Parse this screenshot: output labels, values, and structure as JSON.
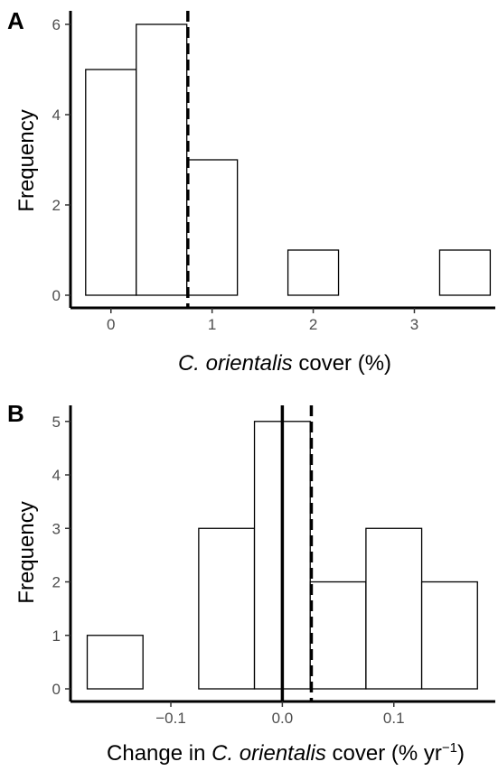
{
  "chart_data": [
    {
      "type": "bar",
      "panel": "A",
      "xlabel_italic": "C. orientalis",
      "xlabel_rest": " cover (%)",
      "ylabel": "Frequency",
      "bin_width": 0.5,
      "bins": [
        {
          "x": 0.0,
          "count": 5
        },
        {
          "x": 0.5,
          "count": 6
        },
        {
          "x": 1.0,
          "count": 3
        },
        {
          "x": 1.5,
          "count": 0
        },
        {
          "x": 2.0,
          "count": 1
        },
        {
          "x": 2.5,
          "count": 0
        },
        {
          "x": 3.0,
          "count": 0
        },
        {
          "x": 3.5,
          "count": 1
        }
      ],
      "xlim": [
        -0.4,
        3.8
      ],
      "ylim": [
        0,
        6.3
      ],
      "xticks": [
        0,
        1,
        2,
        3
      ],
      "xtick_labels": [
        "0",
        "1",
        "2",
        "3"
      ],
      "yticks": [
        0,
        2,
        4,
        6
      ],
      "ytick_labels": [
        "0",
        "2",
        "4",
        "6"
      ],
      "dashed_line_x": 0.76,
      "solid_line_x": null,
      "grid": false,
      "legend": "none"
    },
    {
      "type": "bar",
      "panel": "B",
      "xlabel_prefix": "Change in ",
      "xlabel_italic": "C. orientalis",
      "xlabel_rest": " cover (% yr",
      "xlabel_sup": "−1",
      "xlabel_close": ")",
      "ylabel": "Frequency",
      "bin_width": 0.05,
      "bins": [
        {
          "x": -0.15,
          "count": 1
        },
        {
          "x": -0.1,
          "count": 0
        },
        {
          "x": -0.05,
          "count": 3
        },
        {
          "x": 0.0,
          "count": 5
        },
        {
          "x": 0.05,
          "count": 2
        },
        {
          "x": 0.1,
          "count": 3
        },
        {
          "x": 0.15,
          "count": 2
        }
      ],
      "xlim": [
        -0.19,
        0.191
      ],
      "ylim": [
        0,
        5.3
      ],
      "xticks": [
        -0.1,
        0.0,
        0.1
      ],
      "xtick_labels": [
        "−0.1",
        "0.0",
        "0.1"
      ],
      "yticks": [
        0,
        1,
        2,
        3,
        4,
        5
      ],
      "ytick_labels": [
        "0",
        "1",
        "2",
        "3",
        "4",
        "5"
      ],
      "dashed_line_x": 0.026,
      "solid_line_x": 0.0,
      "grid": false,
      "legend": "none"
    }
  ]
}
